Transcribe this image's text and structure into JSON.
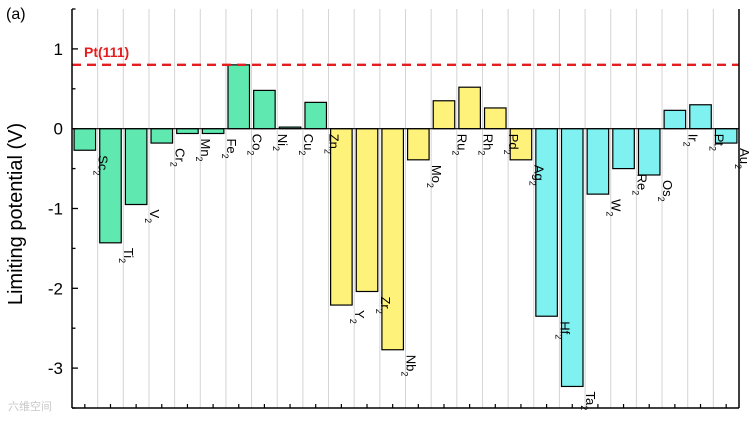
{
  "panel_label": "(a)",
  "watermark": "六维空间",
  "colors": {
    "green": "#5fe8b0",
    "yellow": "#fff27a",
    "cyan": "#7ff1f1",
    "reference": "#e41e1e",
    "grid": "#d4d4d4"
  },
  "chart_data": {
    "type": "bar",
    "title": "",
    "xlabel": "",
    "ylabel": "Limiting potential (V)",
    "ylim": [
      -3.5,
      1.5
    ],
    "yticks": [
      1,
      0,
      -1,
      -2,
      -3
    ],
    "grid": true,
    "categories": [
      "Sc2",
      "Ti2",
      "V2",
      "Cr2",
      "Mn2",
      "Fe2",
      "Co2",
      "Ni2",
      "Cu2",
      "Zn2",
      "Y2",
      "Zr2",
      "Nb2",
      "Mo2",
      "Ru2",
      "Rh2",
      "Pd2",
      "Ag2",
      "Hf2",
      "Ta2",
      "W2",
      "Re2",
      "Os2",
      "Ir2",
      "Pt2",
      "Au2"
    ],
    "labels": [
      {
        "base": "Sc",
        "sub": "2"
      },
      {
        "base": "Ti",
        "sub": "2"
      },
      {
        "base": "V",
        "sub": "2"
      },
      {
        "base": "Cr",
        "sub": "2"
      },
      {
        "base": "Mn",
        "sub": "2"
      },
      {
        "base": "Fe",
        "sub": "2"
      },
      {
        "base": "Co",
        "sub": "2"
      },
      {
        "base": "Ni",
        "sub": "2"
      },
      {
        "base": "Cu",
        "sub": "2"
      },
      {
        "base": "Zn",
        "sub": "2"
      },
      {
        "base": "Y",
        "sub": "2"
      },
      {
        "base": "Zr",
        "sub": "2"
      },
      {
        "base": "Nb",
        "sub": "2"
      },
      {
        "base": "Mo",
        "sub": "2"
      },
      {
        "base": "Ru",
        "sub": "2"
      },
      {
        "base": "Rh",
        "sub": "2"
      },
      {
        "base": "Pd",
        "sub": "2"
      },
      {
        "base": "Ag",
        "sub": "2"
      },
      {
        "base": "Hf",
        "sub": "2"
      },
      {
        "base": "Ta",
        "sub": "2"
      },
      {
        "base": "W",
        "sub": "2"
      },
      {
        "base": "Re",
        "sub": "2"
      },
      {
        "base": "Os",
        "sub": "2"
      },
      {
        "base": "Ir",
        "sub": "2"
      },
      {
        "base": "Pt",
        "sub": "2"
      },
      {
        "base": "Au",
        "sub": "2"
      }
    ],
    "values": [
      -0.27,
      -1.43,
      -0.95,
      -0.18,
      -0.06,
      -0.06,
      0.8,
      0.48,
      0.02,
      0.33,
      -2.21,
      -2.04,
      -2.77,
      -0.39,
      0.35,
      0.52,
      0.26,
      -0.39,
      -2.35,
      -3.23,
      -0.82,
      -0.5,
      -0.58,
      0.23,
      0.3,
      -0.18
    ],
    "groups": [
      "green",
      "green",
      "green",
      "green",
      "green",
      "green",
      "green",
      "green",
      "green",
      "green",
      "yellow",
      "yellow",
      "yellow",
      "yellow",
      "yellow",
      "yellow",
      "yellow",
      "yellow",
      "cyan",
      "cyan",
      "cyan",
      "cyan",
      "cyan",
      "cyan",
      "cyan",
      "cyan"
    ],
    "reference_line": {
      "label": "Pt(111)",
      "value": 0.8
    }
  }
}
